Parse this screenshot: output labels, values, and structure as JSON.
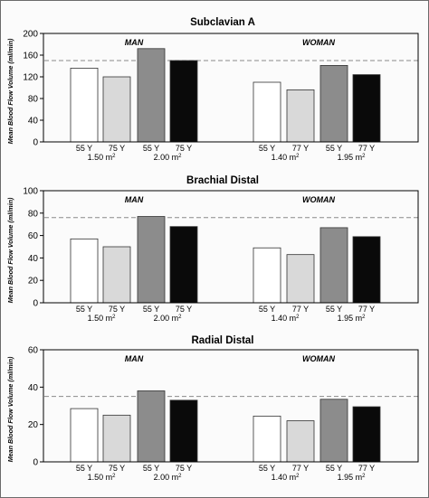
{
  "figure": {
    "colors": {
      "white": "#ffffff",
      "lightgray": "#d9d9d9",
      "gray": "#8c8c8c",
      "black": "#0a0a0a",
      "refline": "#8a8a8a"
    }
  },
  "chart_data": [
    {
      "type": "bar",
      "title": "Subclavian A",
      "ylabel": "Mean Blood Flow Volume (ml/min)",
      "ylim": [
        0,
        200
      ],
      "yticks": [
        0,
        40,
        80,
        120,
        160,
        200
      ],
      "reference_line": 150,
      "group_labels": [
        "MAN",
        "WOMAN"
      ],
      "categories": [
        "55 Y",
        "75 Y",
        "55 Y",
        "75 Y",
        "55 Y",
        "77 Y",
        "55 Y",
        "77 Y"
      ],
      "bsa_labels": [
        {
          "base": "1.50 m",
          "sup": "2"
        },
        {
          "base": "2.00 m",
          "sup": "2"
        },
        {
          "base": "1.40 m",
          "sup": "2"
        },
        {
          "base": "1.95 m",
          "sup": "2"
        }
      ],
      "values": [
        136,
        120,
        172,
        150,
        110,
        96,
        141,
        124
      ],
      "bar_colors": [
        "white",
        "lightgray",
        "gray",
        "black",
        "white",
        "lightgray",
        "gray",
        "black"
      ],
      "grid": false
    },
    {
      "type": "bar",
      "title": "Brachial Distal",
      "ylabel": "Mean Blood Flow Volume (ml/min)",
      "ylim": [
        0,
        100
      ],
      "yticks": [
        0,
        20,
        40,
        60,
        80,
        100
      ],
      "reference_line": 76,
      "group_labels": [
        "MAN",
        "WOMAN"
      ],
      "categories": [
        "55 Y",
        "75 Y",
        "55 Y",
        "75 Y",
        "55 Y",
        "77 Y",
        "55 Y",
        "77 Y"
      ],
      "bsa_labels": [
        {
          "base": "1.50 m",
          "sup": "2"
        },
        {
          "base": "2.00 m",
          "sup": "2"
        },
        {
          "base": "1.40 m",
          "sup": "2"
        },
        {
          "base": "1.95 m",
          "sup": "2"
        }
      ],
      "values": [
        57,
        50,
        77,
        68,
        49,
        43,
        67,
        59
      ],
      "bar_colors": [
        "white",
        "lightgray",
        "gray",
        "black",
        "white",
        "lightgray",
        "gray",
        "black"
      ],
      "grid": false
    },
    {
      "type": "bar",
      "title": "Radial Distal",
      "ylabel": "Mean Blood Flow Volume (ml/min)",
      "ylim": [
        0,
        60
      ],
      "yticks": [
        0,
        20,
        40,
        60
      ],
      "reference_line": 35,
      "group_labels": [
        "MAN",
        "WOMAN"
      ],
      "categories": [
        "55 Y",
        "75 Y",
        "55 Y",
        "75 Y",
        "55 Y",
        "77 Y",
        "55 Y",
        "77 Y"
      ],
      "bsa_labels": [
        {
          "base": "1.50 m",
          "sup": "2"
        },
        {
          "base": "2.00 m",
          "sup": "2"
        },
        {
          "base": "1.40 m",
          "sup": "2"
        },
        {
          "base": "1.95 m",
          "sup": "2"
        }
      ],
      "values": [
        28.5,
        25,
        38,
        33,
        24.5,
        22,
        33.5,
        29.5
      ],
      "bar_colors": [
        "white",
        "lightgray",
        "gray",
        "black",
        "white",
        "lightgray",
        "gray",
        "black"
      ],
      "grid": false
    }
  ]
}
